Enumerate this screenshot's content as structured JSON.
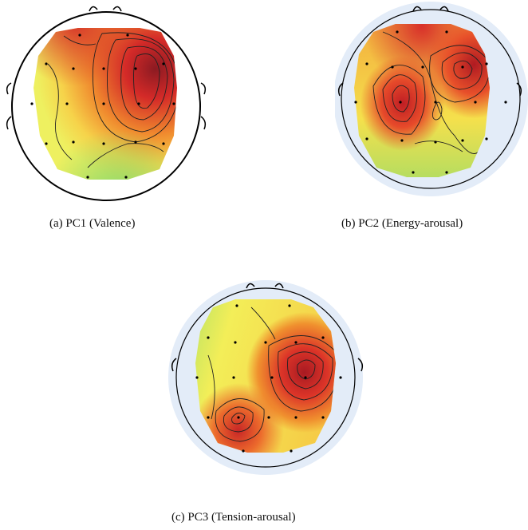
{
  "panels": [
    {
      "id": "a",
      "caption": "(a)  PC1 (Valence)",
      "head_outline_color": "#000000",
      "halo": false
    },
    {
      "id": "b",
      "caption": "(b)  PC2 (Energy-arousal)",
      "head_outline_color": "#000000",
      "halo": true
    },
    {
      "id": "c",
      "caption": "(c)  PC3 (Tension-arousal)",
      "head_outline_color": "#000000",
      "halo": true
    }
  ],
  "colors": {
    "low": "#7fdc6e",
    "mid_low": "#f3f25a",
    "mid": "#f6c842",
    "mid_high": "#ef7a2a",
    "high": "#d8282a",
    "peak": "#9a1c22",
    "halo": "#e3ecf8",
    "contour": "#222222"
  }
}
